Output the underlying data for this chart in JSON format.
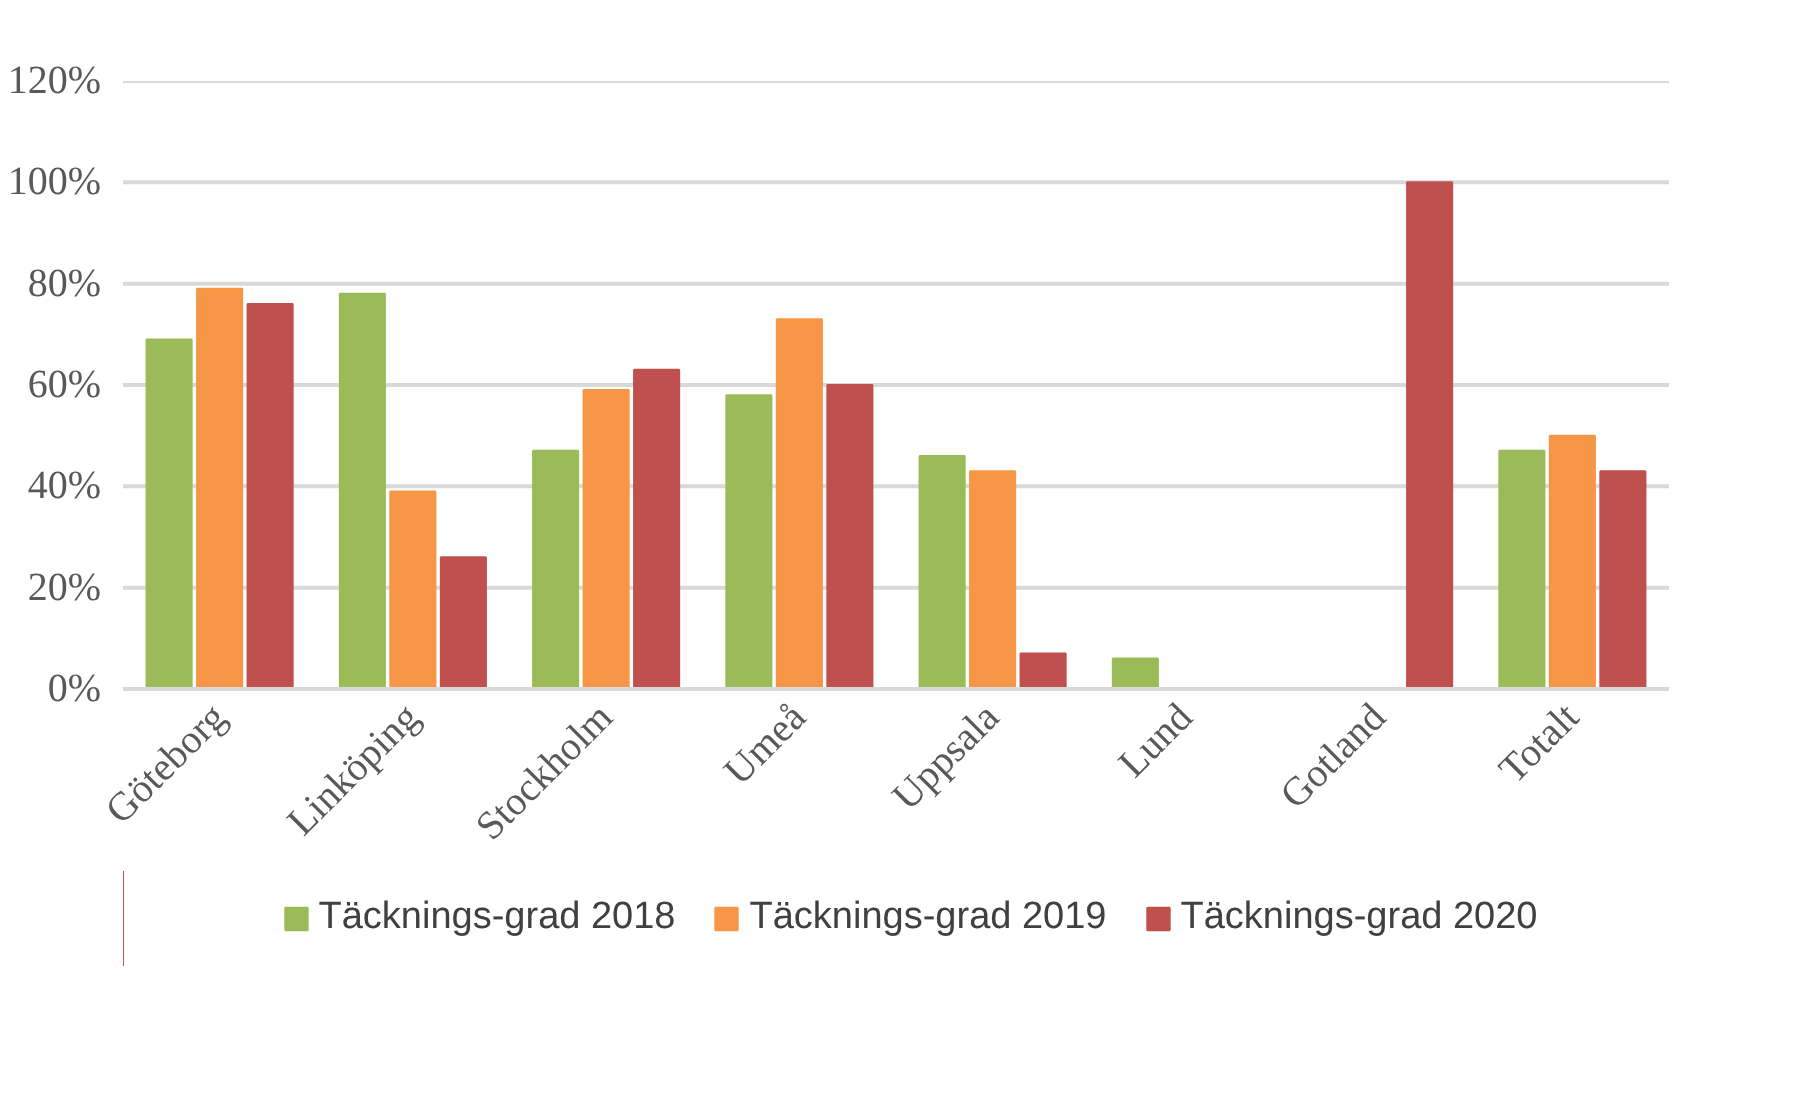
{
  "chart_data": {
    "type": "bar",
    "categories": [
      "Göteborg",
      "Linköping",
      "Stockholm",
      "Umeå",
      "Uppsala",
      "Lund",
      "Gotland",
      "Totalt"
    ],
    "series": [
      {
        "name": "Täcknings-grad 2018",
        "color": "#9bbb59",
        "values": [
          69,
          78,
          47,
          58,
          46,
          6,
          null,
          47
        ]
      },
      {
        "name": "Täcknings-grad 2019",
        "color": "#f79646",
        "values": [
          79,
          39,
          59,
          73,
          43,
          null,
          null,
          50
        ]
      },
      {
        "name": "Täcknings-grad 2020",
        "color": "#c0504d",
        "values": [
          76,
          26,
          63,
          60,
          7,
          null,
          100,
          43
        ]
      }
    ],
    "ylim": [
      0,
      120
    ],
    "yticks": [
      {
        "value": 0,
        "label": "0%"
      },
      {
        "value": 20,
        "label": "20%"
      },
      {
        "value": 40,
        "label": "40%"
      },
      {
        "value": 60,
        "label": "60%"
      },
      {
        "value": 80,
        "label": "80%"
      },
      {
        "value": 100,
        "label": "100%"
      },
      {
        "value": 120,
        "label": "120%"
      }
    ],
    "grid": "y",
    "legend": "bottom"
  }
}
